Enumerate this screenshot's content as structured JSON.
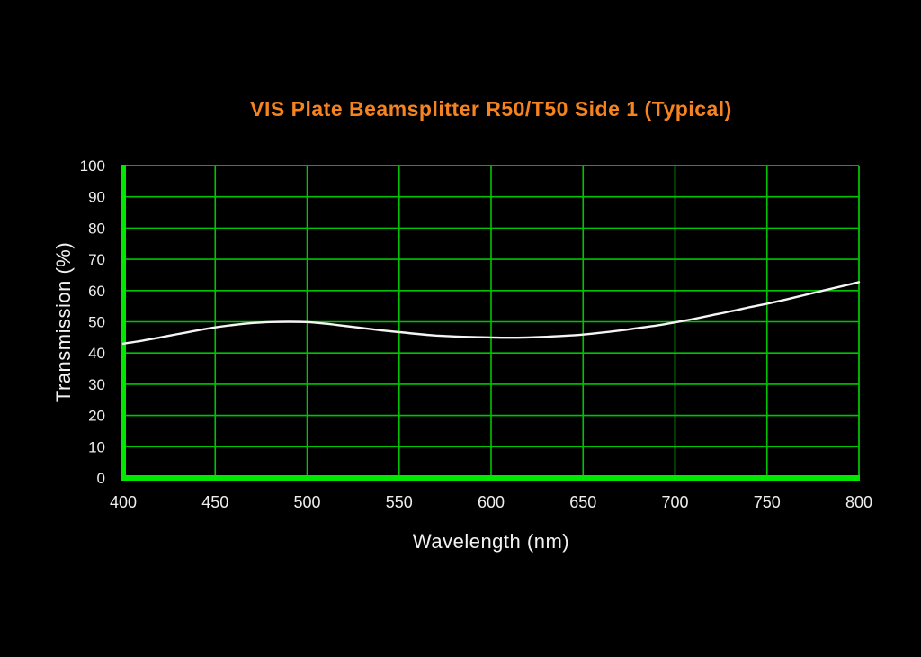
{
  "page": {
    "background": "#000000"
  },
  "chart_data": {
    "type": "line",
    "title": "VIS Plate Beamsplitter R50/T50 Side 1 (Typical)",
    "xlabel": "Wavelength (nm)",
    "ylabel": "Transmission (%)",
    "xlim": [
      400,
      800
    ],
    "ylim": [
      0,
      100
    ],
    "xticks": [
      400,
      450,
      500,
      550,
      600,
      650,
      700,
      750,
      800
    ],
    "yticks": [
      0,
      10,
      20,
      30,
      40,
      50,
      60,
      70,
      80,
      90,
      100
    ],
    "grid": true,
    "legend_position": "none",
    "colors": {
      "background": "#000000",
      "grid": "#00c400",
      "axis": "#00e800",
      "line": "#f5f5f5",
      "title": "#f5831f",
      "tick_labels": "#eeeeee",
      "axis_labels": "#f2f2f2"
    },
    "series": [
      {
        "name": "Transmission",
        "x": [
          400,
          410,
          420,
          430,
          440,
          450,
          460,
          470,
          480,
          490,
          500,
          510,
          520,
          530,
          540,
          550,
          560,
          570,
          580,
          590,
          600,
          610,
          620,
          630,
          640,
          650,
          660,
          670,
          680,
          690,
          700,
          710,
          720,
          730,
          740,
          750,
          760,
          770,
          780,
          790,
          800
        ],
        "y": [
          43.0,
          43.9,
          45.0,
          46.1,
          47.2,
          48.2,
          49.0,
          49.6,
          49.9,
          50.0,
          49.9,
          49.4,
          48.7,
          48.0,
          47.3,
          46.7,
          46.1,
          45.6,
          45.3,
          45.1,
          45.0,
          44.9,
          45.0,
          45.2,
          45.5,
          45.9,
          46.5,
          47.2,
          48.0,
          48.8,
          49.8,
          50.9,
          52.1,
          53.3,
          54.6,
          55.8,
          57.1,
          58.5,
          59.9,
          61.3,
          62.7
        ]
      }
    ]
  }
}
